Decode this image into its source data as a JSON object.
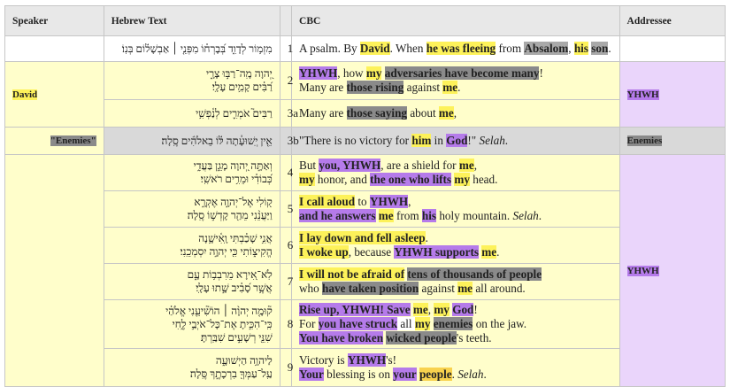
{
  "headers": {
    "speaker": "Speaker",
    "hebrew": "Hebrew Text",
    "verse": "",
    "cbc": "CBC",
    "addressee": "Addressee"
  },
  "colors": {
    "david_bg": "#fffecb",
    "enemies_bg": "#d9d9d9",
    "yhwh_addressee_bg": "#ead5fb",
    "highlight_david": "#fdf25a",
    "highlight_yhwh": "#b57bea",
    "highlight_enemies": "#8a8a8a",
    "highlight_people": "#f8d24e"
  },
  "rows": [
    {
      "verse": "1",
      "speaker": "",
      "addressee": "",
      "hebrew": [
        "מִזְמ֥וֹר לְדָוִ֑ד בְּ֝בָרְח֗וֹ מִפְּנֵ֤י ׀ אַבְשָׁל֬וֹם בְּנֽוֹ׃"
      ],
      "cbc": {
        "p1": "A psalm. By ",
        "s1": "David",
        "p2": ". When ",
        "s2": "he was fleeing",
        "p3": " from ",
        "s3": "Absalom",
        "p4": ", ",
        "s4": "his",
        "p5": " ",
        "s5": "son",
        "p6": "."
      }
    },
    {
      "verse": "2",
      "speaker": "David",
      "addressee": "YHWH",
      "hebrew": [
        "יְ֭הוָה מָֽה־רַבּ֣וּ צָרָ֑י",
        "רַ֝בִּ֗ים קָמִ֥ים עָלָֽי׃"
      ],
      "cbc": {
        "l1": {
          "s1": "YHWH",
          "p1": ", how ",
          "s2": "my",
          "p2": " ",
          "s3": "adversaries have become many",
          "p3": "!"
        },
        "l2": {
          "p1": "Many are ",
          "s1": "those rising",
          "p2": " against ",
          "s2": "me",
          "p3": "."
        }
      }
    },
    {
      "verse": "3a",
      "hebrew": [
        "רַבִּים֮ אֹמְרִ֪ים לְנַ֫פְשִׁ֥י"
      ],
      "cbc": {
        "p1": "Many are ",
        "s1": "those saying",
        "p2": " about ",
        "s2": "me",
        "p3": ","
      }
    },
    {
      "verse": "3b",
      "speaker": "\"Enemies\"",
      "addressee": "Enemies",
      "hebrew": [
        "אֵ֤ין יְֽשׁוּעָ֓תָה לּ֬וֹ בֵאלֹהִ֬ים סֶֽלָה׃"
      ],
      "cbc": {
        "p1": "\"There is no victory for ",
        "s1": "him",
        "p2": " in ",
        "s2": "God",
        "p3": "!\" ",
        "i1": "Selah",
        "p4": "."
      }
    },
    {
      "verse": "4",
      "speaker": "",
      "addressee": "YHWH",
      "hebrew": [
        "וְאַתָּ֣ה יְ֭הוָה מָגֵ֣ן בַּעֲדִ֑י",
        "כְּ֝בוֹדִ֗י וּמֵרִ֥ים רֹאשִֽׁי׃"
      ],
      "cbc": {
        "l1": {
          "p1": "But ",
          "s1": "you, YHWH",
          "p2": ", are a shield for ",
          "s2": "me",
          "p3": ","
        },
        "l2": {
          "s1": "my",
          "p1": " honor, and ",
          "s2": "the one who lifts",
          "p2": " ",
          "s3": "my",
          "p3": " head."
        }
      }
    },
    {
      "verse": "5",
      "hebrew": [
        "ק֭וֹלִי אֶל־יְהוָ֣ה אֶקְרָ֑א",
        "וַיַּעֲנֵ֨נִי מֵהַ֖ר קָדְשׁ֣וֹ סֶֽלָה׃"
      ],
      "cbc": {
        "l1": {
          "s1": "I call aloud",
          "p1": " to ",
          "s2": "YHWH",
          "p2": ","
        },
        "l2": {
          "s1": "and he answers",
          "p1": " ",
          "s2": "me",
          "p2": " from ",
          "s3": "his",
          "p3": " holy mountain. ",
          "i1": "Selah",
          "p4": "."
        }
      }
    },
    {
      "verse": "6",
      "hebrew": [
        "אֲנִ֥י שָׁכַ֗בְתִּי וָֽאִ֫ישָׁ֥נָה",
        "הֱקִיצ֑וֹתִי כִּ֖י יְהוָ֣ה יִסְמְכֵֽנִי׃"
      ],
      "cbc": {
        "l1": {
          "s1": "I lay down and fell asleep",
          "p1": "."
        },
        "l2": {
          "s1": "I woke up",
          "p1": ", because ",
          "s2": "YHWH supports",
          "p2": " ",
          "s3": "me",
          "p3": "."
        }
      }
    },
    {
      "verse": "7",
      "hebrew": [
        "לֹֽא־אִ֭ירָא מֵרִבְב֥וֹת עָ֑ם",
        "אֲשֶׁ֥ר סָ֝בִ֗יב שָׁ֣תוּ עָלָֽי׃"
      ],
      "cbc": {
        "l1": {
          "s1": "I will not be afraid of",
          "p1": " ",
          "s2": "tens of thousands of people"
        },
        "l2": {
          "p1": "who ",
          "s1": "have taken position",
          "p2": " against ",
          "s2": "me",
          "p3": " all around."
        }
      }
    },
    {
      "verse": "8",
      "hebrew": [
        "ק֘וּמָ֤ה יְהוָ֨ה ׀ הוֹשִׁ֘יעֵ֤נִי אֱלֹהַ֗י",
        "כִּֽי־הִכִּ֣יתָ אֶת־כָּל־אֹיְבַ֣י לֶ֑חִי",
        "שִׁנֵּ֖י רְשָׁעִ֣ים שִׁבַּֽרְתָּ׃"
      ],
      "cbc": {
        "l1": {
          "s1": "Rise up, YHWH! Save",
          "p1": " ",
          "s2": "me",
          "p2": ", ",
          "s3": "my",
          "p3": " ",
          "s4": "God",
          "p4": "!"
        },
        "l2": {
          "p1": "For ",
          "s1": "you have struck",
          "p2": " all ",
          "s2": "my",
          "p3": " ",
          "s3": "enemies",
          "p4": " on the jaw."
        },
        "l3": {
          "s1": "You have broken",
          "p1": " ",
          "s2": "wicked people",
          "p2": "'s teeth."
        }
      }
    },
    {
      "verse": "9",
      "hebrew": [
        "לַיהוָ֥ה הַיְשׁוּעָ֑ה",
        "עַֽל־עַמְּךָ֖ בִרְכָתֶ֣ךָ סֶּֽלָה׃"
      ],
      "cbc": {
        "l1": {
          "p1": "Victory is ",
          "s1": "YHWH",
          "p2": "'s!"
        },
        "l2": {
          "s1": "Your",
          "p1": " blessing is on ",
          "s2": "your",
          "p2": " ",
          "s3": "people",
          "p3": ". ",
          "i1": "Selah",
          "p4": "."
        }
      }
    }
  ]
}
